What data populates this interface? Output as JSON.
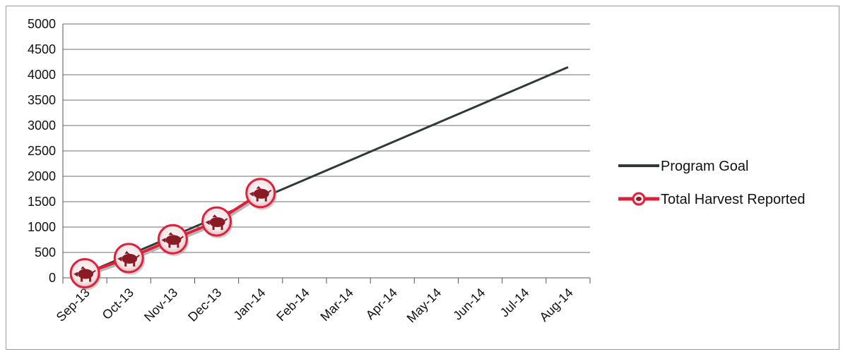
{
  "chart_data": {
    "type": "line",
    "title": "",
    "xlabel": "",
    "ylabel": "",
    "categories": [
      "Sep-13",
      "Oct-13",
      "Nov-13",
      "Dec-13",
      "Jan-14",
      "Feb-14",
      "Mar-14",
      "Apr-14",
      "May-14",
      "Jun-14",
      "Jul-14",
      "Aug-14"
    ],
    "ylim": [
      0,
      5000
    ],
    "yticks": [
      0,
      500,
      1000,
      1500,
      2000,
      2500,
      3000,
      3500,
      4000,
      4500,
      5000
    ],
    "grid": true,
    "legend_position": "right",
    "series": [
      {
        "name": "Program Goal",
        "color": "#2e3a36",
        "values": [
          80,
          450,
          820,
          1190,
          1560,
          1930,
          2300,
          2670,
          3040,
          3410,
          3780,
          4150
        ]
      },
      {
        "name": "Total Harvest Reported",
        "color": "#e0203a",
        "marker": "boar-icon",
        "values": [
          90,
          390,
          760,
          1110,
          1670,
          null,
          null,
          null,
          null,
          null,
          null,
          null
        ]
      }
    ]
  }
}
